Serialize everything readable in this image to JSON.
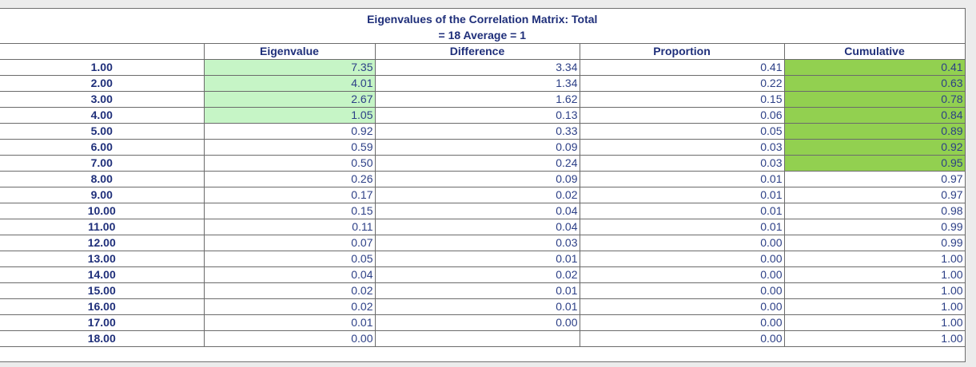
{
  "title_line1": "Eigenvalues of the Correlation Matrix: Total",
  "title_line2": "= 18 Average = 1",
  "columns": {
    "eigenvalue": "Eigenvalue",
    "difference": "Difference",
    "proportion": "Proportion",
    "cumulative": "Cumulative"
  },
  "colors": {
    "eigenvalue_highlight": "#c6f5c6",
    "cumulative_highlight": "#92d050",
    "header_text": "#1f2f7a"
  },
  "rows": [
    {
      "label": "1.00",
      "eigenvalue": "7.35",
      "difference": "3.34",
      "proportion": "0.41",
      "cumulative": "0.41",
      "eig_hl": true,
      "cum_hl": true
    },
    {
      "label": "2.00",
      "eigenvalue": "4.01",
      "difference": "1.34",
      "proportion": "0.22",
      "cumulative": "0.63",
      "eig_hl": true,
      "cum_hl": true
    },
    {
      "label": "3.00",
      "eigenvalue": "2.67",
      "difference": "1.62",
      "proportion": "0.15",
      "cumulative": "0.78",
      "eig_hl": true,
      "cum_hl": true
    },
    {
      "label": "4.00",
      "eigenvalue": "1.05",
      "difference": "0.13",
      "proportion": "0.06",
      "cumulative": "0.84",
      "eig_hl": true,
      "cum_hl": true
    },
    {
      "label": "5.00",
      "eigenvalue": "0.92",
      "difference": "0.33",
      "proportion": "0.05",
      "cumulative": "0.89",
      "eig_hl": false,
      "cum_hl": true
    },
    {
      "label": "6.00",
      "eigenvalue": "0.59",
      "difference": "0.09",
      "proportion": "0.03",
      "cumulative": "0.92",
      "eig_hl": false,
      "cum_hl": true
    },
    {
      "label": "7.00",
      "eigenvalue": "0.50",
      "difference": "0.24",
      "proportion": "0.03",
      "cumulative": "0.95",
      "eig_hl": false,
      "cum_hl": true
    },
    {
      "label": "8.00",
      "eigenvalue": "0.26",
      "difference": "0.09",
      "proportion": "0.01",
      "cumulative": "0.97",
      "eig_hl": false,
      "cum_hl": false
    },
    {
      "label": "9.00",
      "eigenvalue": "0.17",
      "difference": "0.02",
      "proportion": "0.01",
      "cumulative": "0.97",
      "eig_hl": false,
      "cum_hl": false
    },
    {
      "label": "10.00",
      "eigenvalue": "0.15",
      "difference": "0.04",
      "proportion": "0.01",
      "cumulative": "0.98",
      "eig_hl": false,
      "cum_hl": false
    },
    {
      "label": "11.00",
      "eigenvalue": "0.11",
      "difference": "0.04",
      "proportion": "0.01",
      "cumulative": "0.99",
      "eig_hl": false,
      "cum_hl": false
    },
    {
      "label": "12.00",
      "eigenvalue": "0.07",
      "difference": "0.03",
      "proportion": "0.00",
      "cumulative": "0.99",
      "eig_hl": false,
      "cum_hl": false
    },
    {
      "label": "13.00",
      "eigenvalue": "0.05",
      "difference": "0.01",
      "proportion": "0.00",
      "cumulative": "1.00",
      "eig_hl": false,
      "cum_hl": false
    },
    {
      "label": "14.00",
      "eigenvalue": "0.04",
      "difference": "0.02",
      "proportion": "0.00",
      "cumulative": "1.00",
      "eig_hl": false,
      "cum_hl": false
    },
    {
      "label": "15.00",
      "eigenvalue": "0.02",
      "difference": "0.01",
      "proportion": "0.00",
      "cumulative": "1.00",
      "eig_hl": false,
      "cum_hl": false
    },
    {
      "label": "16.00",
      "eigenvalue": "0.02",
      "difference": "0.01",
      "proportion": "0.00",
      "cumulative": "1.00",
      "eig_hl": false,
      "cum_hl": false
    },
    {
      "label": "17.00",
      "eigenvalue": "0.01",
      "difference": "0.00",
      "proportion": "0.00",
      "cumulative": "1.00",
      "eig_hl": false,
      "cum_hl": false
    },
    {
      "label": "18.00",
      "eigenvalue": "0.00",
      "difference": "",
      "proportion": "0.00",
      "cumulative": "1.00",
      "eig_hl": false,
      "cum_hl": false
    }
  ]
}
